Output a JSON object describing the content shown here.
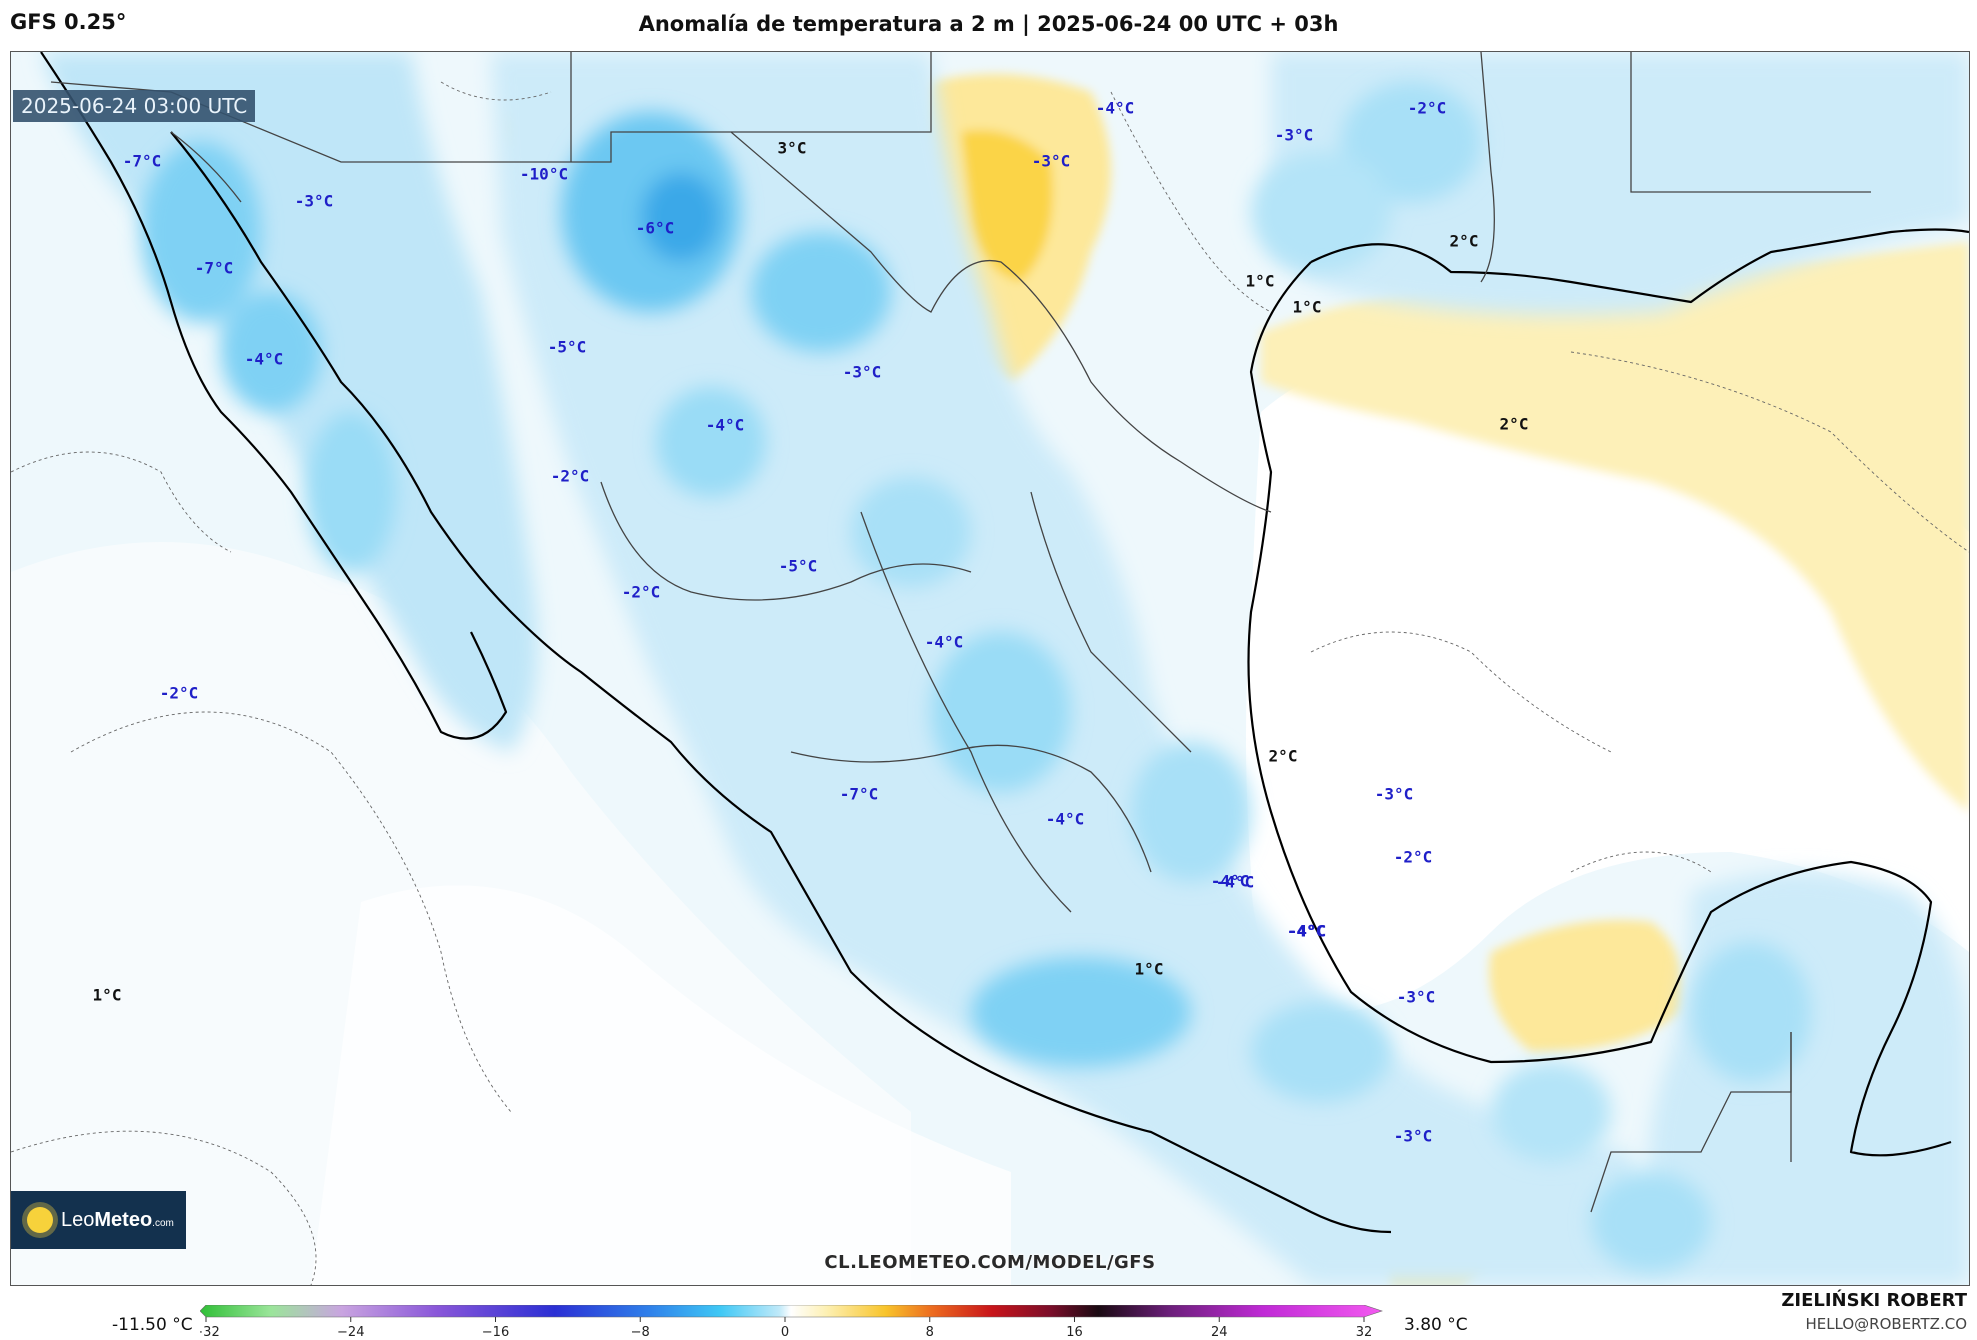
{
  "header": {
    "model": "GFS 0.25°",
    "title": "Anomalía de temperatura a 2 m | 2025-06-24 00 UTC + 03h"
  },
  "map": {
    "valid_time": "2025-06-24 03:00 UTC",
    "watermark": "CL.LEOMETEO.COM/MODEL/GFS",
    "labels": [
      {
        "text": "-7°C",
        "kind": "cold"
      },
      {
        "text": "-3°C",
        "kind": "cold"
      },
      {
        "text": "-7°C",
        "kind": "cold"
      },
      {
        "text": "-4°C",
        "kind": "cold"
      },
      {
        "text": "-10°C",
        "kind": "cold"
      },
      {
        "text": "-6°C",
        "kind": "cold"
      },
      {
        "text": "-5°C",
        "kind": "cold"
      },
      {
        "text": "3°C",
        "kind": "warm"
      },
      {
        "text": "-3°C",
        "kind": "cold"
      },
      {
        "text": "-4°C",
        "kind": "cold"
      },
      {
        "text": "-2°C",
        "kind": "cold"
      },
      {
        "text": "-5°C",
        "kind": "cold"
      },
      {
        "text": "-2°C",
        "kind": "cold"
      },
      {
        "text": "-4°C",
        "kind": "cold"
      },
      {
        "text": "-2°C",
        "kind": "cold"
      },
      {
        "text": "-7°C",
        "kind": "cold"
      },
      {
        "text": "-4°C",
        "kind": "cold"
      },
      {
        "text": "-4°C",
        "kind": "cold"
      },
      {
        "text": "-4°C",
        "kind": "cold"
      },
      {
        "text": "-4°C",
        "kind": "cold"
      },
      {
        "text": "-3°C",
        "kind": "cold"
      },
      {
        "text": "-3°C",
        "kind": "cold"
      },
      {
        "text": "-2°C",
        "kind": "cold"
      },
      {
        "text": "-3°C",
        "kind": "cold"
      },
      {
        "text": "1°C",
        "kind": "warm"
      },
      {
        "text": "1°C",
        "kind": "warm"
      },
      {
        "text": "2°C",
        "kind": "warm"
      },
      {
        "text": "2°C",
        "kind": "warm"
      },
      {
        "text": "2°C",
        "kind": "warm"
      },
      {
        "text": "-3°C",
        "kind": "cold"
      },
      {
        "text": "-2°C",
        "kind": "cold"
      },
      {
        "text": "-4°C",
        "kind": "cold"
      },
      {
        "text": "-4°C",
        "kind": "cold"
      },
      {
        "text": "1°C",
        "kind": "warm"
      },
      {
        "text": "1°C",
        "kind": "warm"
      },
      {
        "text": "-3°C",
        "kind": "cold"
      }
    ]
  },
  "logo": {
    "name_light": "Leo",
    "name_bold": "Meteo",
    "suffix": ".com"
  },
  "colorbar": {
    "min_label": "-11.50 °C",
    "max_label": "3.80 °C",
    "ticks": [
      "−32",
      "−24",
      "−16",
      "−8",
      "0",
      "8",
      "16",
      "24",
      "32"
    ]
  },
  "credit": {
    "name": "ZIELIŃSKI ROBERT",
    "email": "HELLO@ROBERTZ.CO"
  },
  "colors": {
    "cold_label": "#1f1fc8",
    "warm_label": "#111111",
    "coast": "#000000",
    "border": "#444444"
  }
}
